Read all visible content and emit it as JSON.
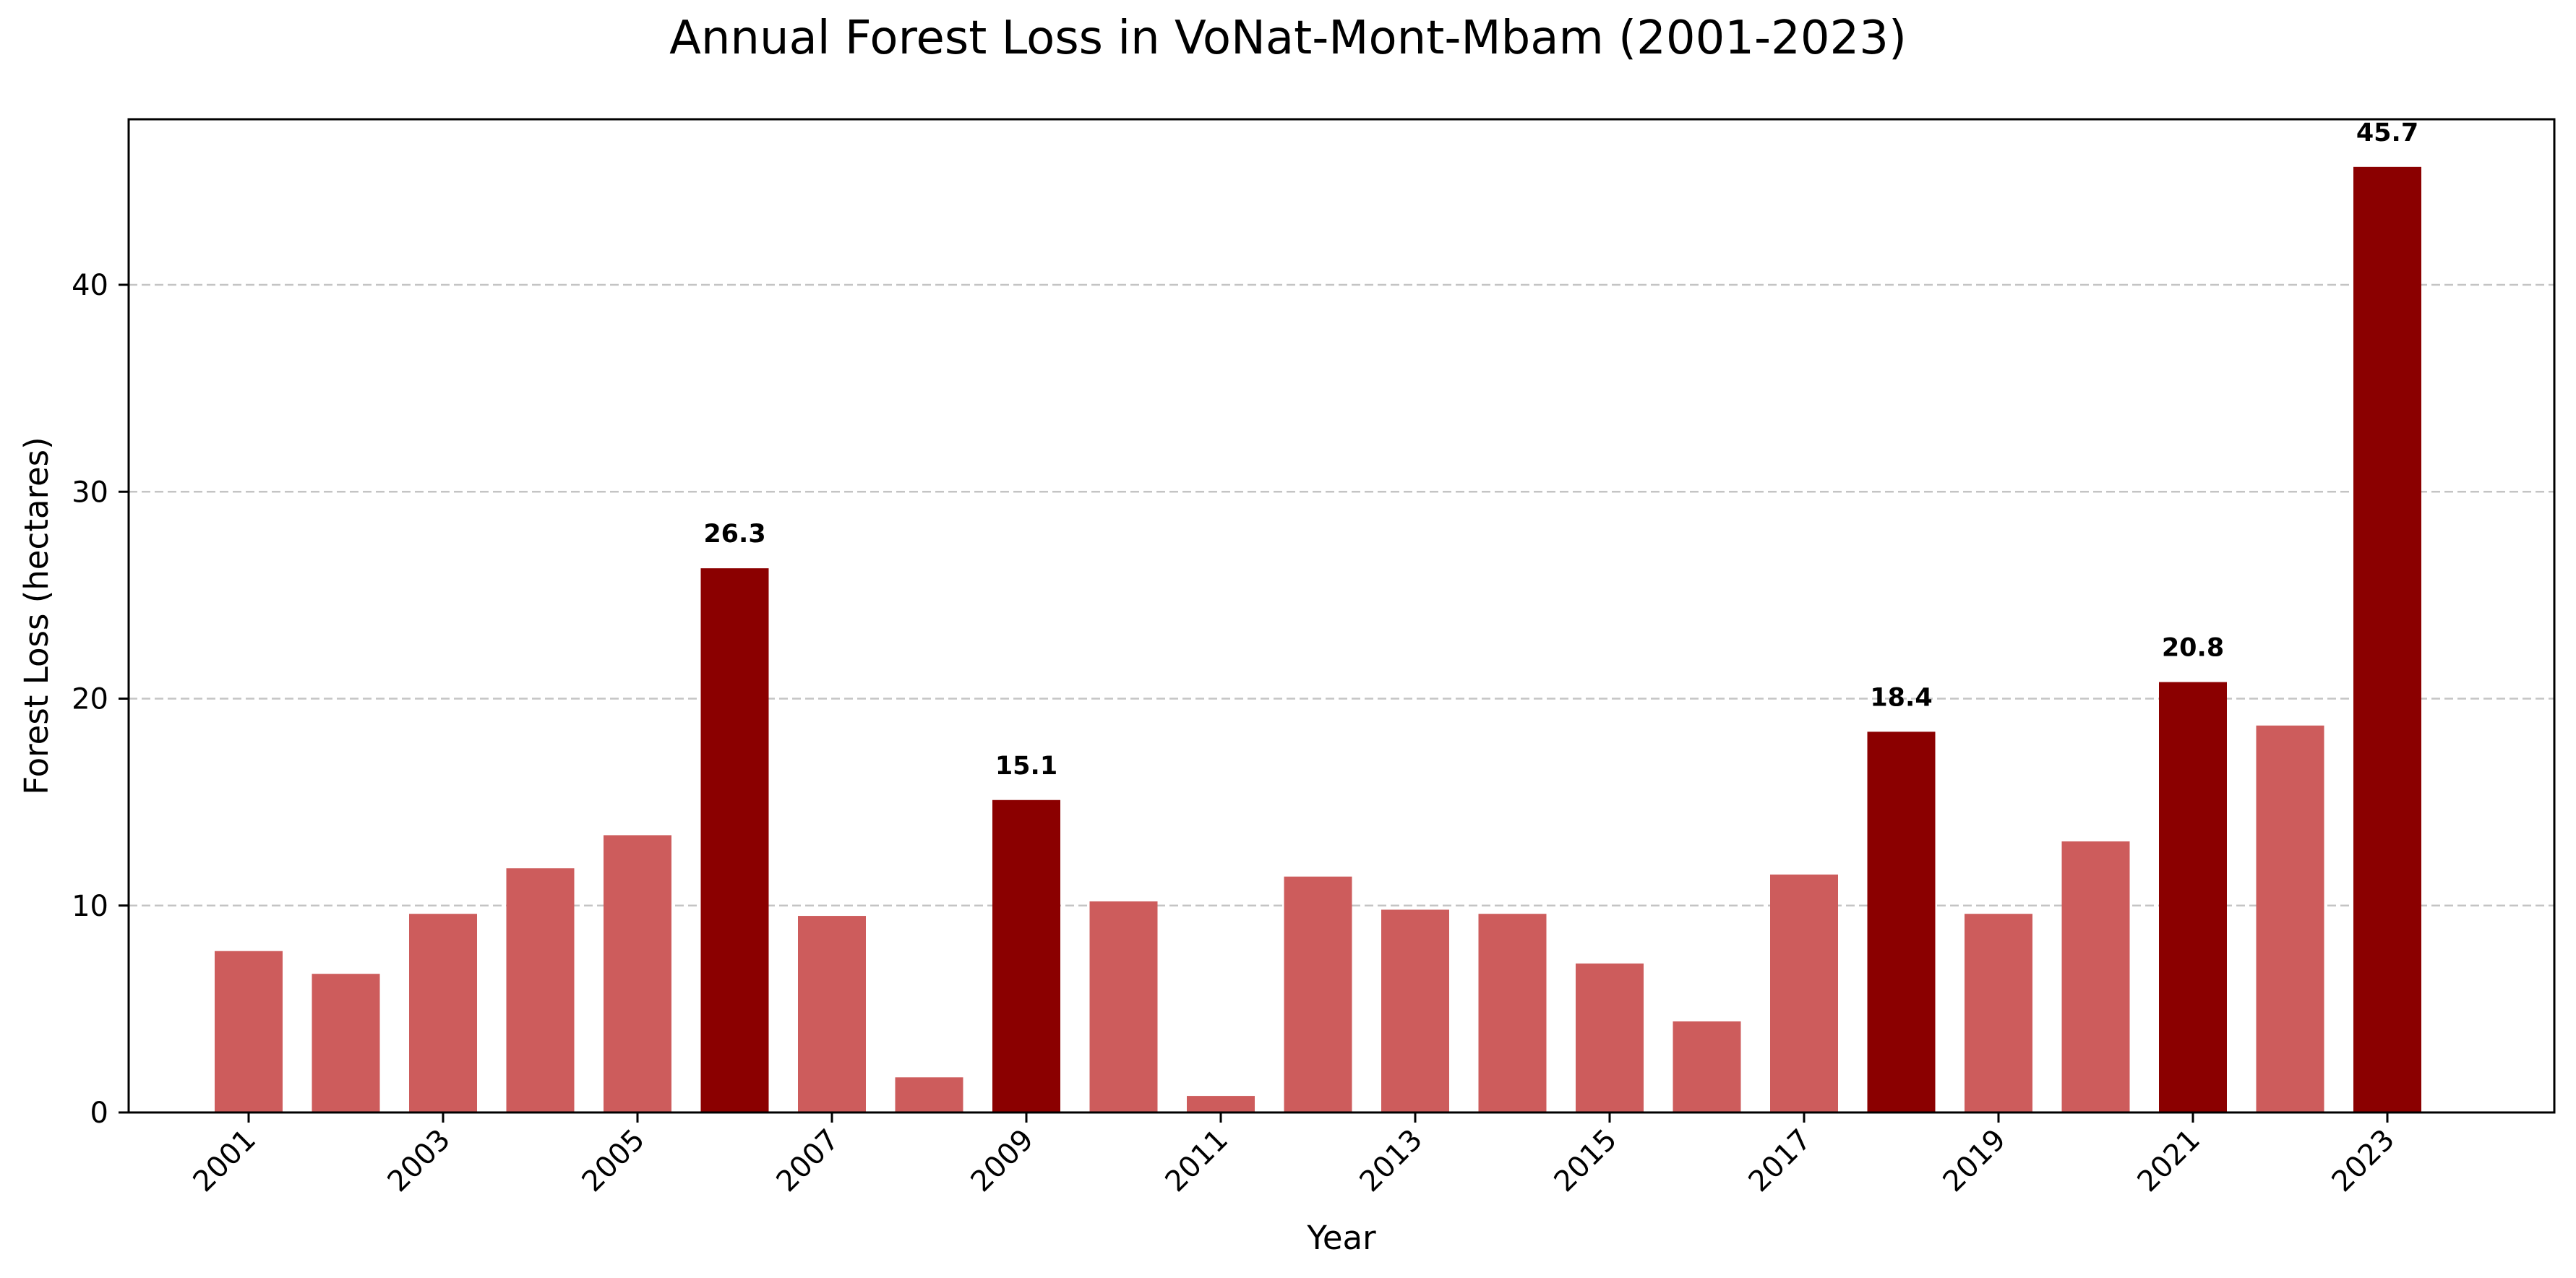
{
  "chart_data": {
    "type": "bar",
    "title": "Annual Forest Loss in VoNat-Mont-Mbam (2001-2023)",
    "xlabel": "Year",
    "ylabel": "Forest Loss (hectares)",
    "categories": [
      "2001",
      "2002",
      "2003",
      "2004",
      "2005",
      "2006",
      "2007",
      "2008",
      "2009",
      "2010",
      "2011",
      "2012",
      "2013",
      "2014",
      "2015",
      "2016",
      "2017",
      "2018",
      "2019",
      "2020",
      "2021",
      "2022",
      "2023"
    ],
    "values": [
      7.8,
      6.7,
      9.6,
      11.8,
      13.4,
      26.3,
      9.5,
      1.7,
      15.1,
      10.2,
      0.8,
      11.4,
      9.8,
      9.6,
      7.2,
      4.4,
      11.5,
      18.4,
      9.6,
      13.1,
      20.8,
      18.7,
      45.7
    ],
    "highlighted": [
      "2006",
      "2009",
      "2018",
      "2021",
      "2023"
    ],
    "data_labels": [
      {
        "category": "2006",
        "text": "26.3"
      },
      {
        "category": "2009",
        "text": "15.1"
      },
      {
        "category": "2018",
        "text": "18.4"
      },
      {
        "category": "2021",
        "text": "20.8"
      },
      {
        "category": "2023",
        "text": "45.7"
      }
    ],
    "x_tick_labels": [
      "2001",
      "2003",
      "2005",
      "2007",
      "2009",
      "2011",
      "2013",
      "2015",
      "2017",
      "2019",
      "2021",
      "2023"
    ],
    "y_ticks": [
      0,
      10,
      20,
      30,
      40
    ],
    "ylim": [
      0,
      48
    ],
    "grid": "horizontal dashed",
    "legend": "none",
    "colors": {
      "normal_bar": "#cd5c5c",
      "highlight_bar": "#8b0000",
      "grid": "#c4c4c4",
      "axes": "#000000"
    }
  }
}
